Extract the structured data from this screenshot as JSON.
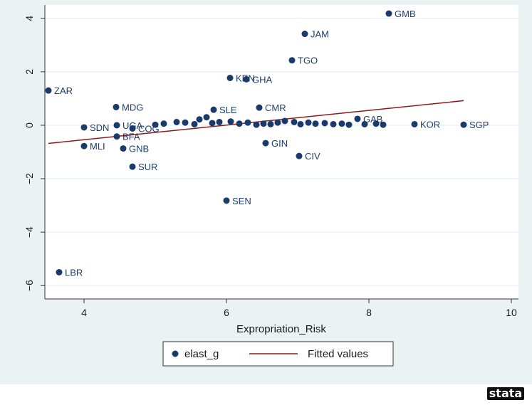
{
  "chart_data": {
    "type": "scatter",
    "xlabel": "Expropriation_Risk",
    "ylabel": "",
    "xlim": [
      3.45,
      10.1
    ],
    "ylim": [
      -6.5,
      4.5
    ],
    "x_ticks": [
      "4",
      "6",
      "8",
      "10"
    ],
    "x_tick_values": [
      4,
      6,
      8,
      10
    ],
    "y_ticks": [
      "−6",
      "−4",
      "−2",
      "0",
      "2",
      "4"
    ],
    "y_tick_values": [
      -6,
      -4,
      -2,
      0,
      2,
      4
    ],
    "grid": true,
    "legend_position": "bottom",
    "colors": {
      "points": "#1a3a6b",
      "fit_line": "#8b1a1a",
      "outer_bg": "#eaf2f3",
      "plot_bg": "#ffffff",
      "grid": "#eaf2f3",
      "logo_bg": "#111111"
    },
    "series": [
      {
        "name": "elast_g",
        "points": [
          {
            "label": "GMB",
            "x": 8.28,
            "y": 4.18
          },
          {
            "label": "JAM",
            "x": 7.1,
            "y": 3.42
          },
          {
            "label": "TGO",
            "x": 6.92,
            "y": 2.43
          },
          {
            "label": "KEN",
            "x": 6.05,
            "y": 1.77
          },
          {
            "label": "GHA",
            "x": 6.28,
            "y": 1.72
          },
          {
            "label": "ZAR",
            "x": 3.5,
            "y": 1.3
          },
          {
            "label": "MDG",
            "x": 4.45,
            "y": 0.68
          },
          {
            "label": "SLE",
            "x": 5.82,
            "y": 0.58
          },
          {
            "label": "CMR",
            "x": 6.46,
            "y": 0.66
          },
          {
            "label": "GAB",
            "x": 7.84,
            "y": 0.24
          },
          {
            "label": "KOR",
            "x": 8.64,
            "y": 0.04
          },
          {
            "label": "SGP",
            "x": 9.33,
            "y": 0.02
          },
          {
            "label": "SDN",
            "x": 4.0,
            "y": -0.08
          },
          {
            "label": "UGA",
            "x": 4.46,
            "y": 0.0
          },
          {
            "label": "COG",
            "x": 4.68,
            "y": -0.12
          },
          {
            "label": "BFA",
            "x": 4.46,
            "y": -0.42
          },
          {
            "label": "MLI",
            "x": 4.0,
            "y": -0.78
          },
          {
            "label": "GNB",
            "x": 4.55,
            "y": -0.87
          },
          {
            "label": "SUR",
            "x": 4.68,
            "y": -1.55
          },
          {
            "label": "GIN",
            "x": 6.55,
            "y": -0.67
          },
          {
            "label": "CIV",
            "x": 7.02,
            "y": -1.15
          },
          {
            "label": "SEN",
            "x": 6.0,
            "y": -2.82
          },
          {
            "label": "LBR",
            "x": 3.65,
            "y": -5.5
          },
          {
            "label": "",
            "x": 5.0,
            "y": 0.02
          },
          {
            "label": "",
            "x": 5.12,
            "y": 0.06
          },
          {
            "label": "",
            "x": 5.3,
            "y": 0.12
          },
          {
            "label": "",
            "x": 5.42,
            "y": 0.1
          },
          {
            "label": "",
            "x": 5.55,
            "y": 0.04
          },
          {
            "label": "",
            "x": 5.62,
            "y": 0.22
          },
          {
            "label": "",
            "x": 5.72,
            "y": 0.3
          },
          {
            "label": "",
            "x": 5.8,
            "y": 0.08
          },
          {
            "label": "",
            "x": 5.9,
            "y": 0.12
          },
          {
            "label": "",
            "x": 6.06,
            "y": 0.14
          },
          {
            "label": "",
            "x": 6.18,
            "y": 0.06
          },
          {
            "label": "",
            "x": 6.3,
            "y": 0.1
          },
          {
            "label": "",
            "x": 6.42,
            "y": 0.02
          },
          {
            "label": "",
            "x": 6.52,
            "y": 0.06
          },
          {
            "label": "",
            "x": 6.62,
            "y": 0.04
          },
          {
            "label": "",
            "x": 6.72,
            "y": 0.1
          },
          {
            "label": "",
            "x": 6.82,
            "y": 0.16
          },
          {
            "label": "",
            "x": 6.95,
            "y": 0.12
          },
          {
            "label": "",
            "x": 7.04,
            "y": 0.04
          },
          {
            "label": "",
            "x": 7.15,
            "y": 0.1
          },
          {
            "label": "",
            "x": 7.25,
            "y": 0.06
          },
          {
            "label": "",
            "x": 7.38,
            "y": 0.08
          },
          {
            "label": "",
            "x": 7.5,
            "y": 0.04
          },
          {
            "label": "",
            "x": 7.62,
            "y": 0.06
          },
          {
            "label": "",
            "x": 7.72,
            "y": 0.02
          },
          {
            "label": "",
            "x": 7.94,
            "y": 0.04
          },
          {
            "label": "",
            "x": 8.1,
            "y": 0.06
          },
          {
            "label": "",
            "x": 8.2,
            "y": 0.02
          }
        ]
      },
      {
        "name": "Fitted values",
        "type": "line",
        "x": [
          3.5,
          9.33
        ],
        "y": [
          -0.68,
          0.92
        ]
      }
    ]
  },
  "logo_text": "stata"
}
